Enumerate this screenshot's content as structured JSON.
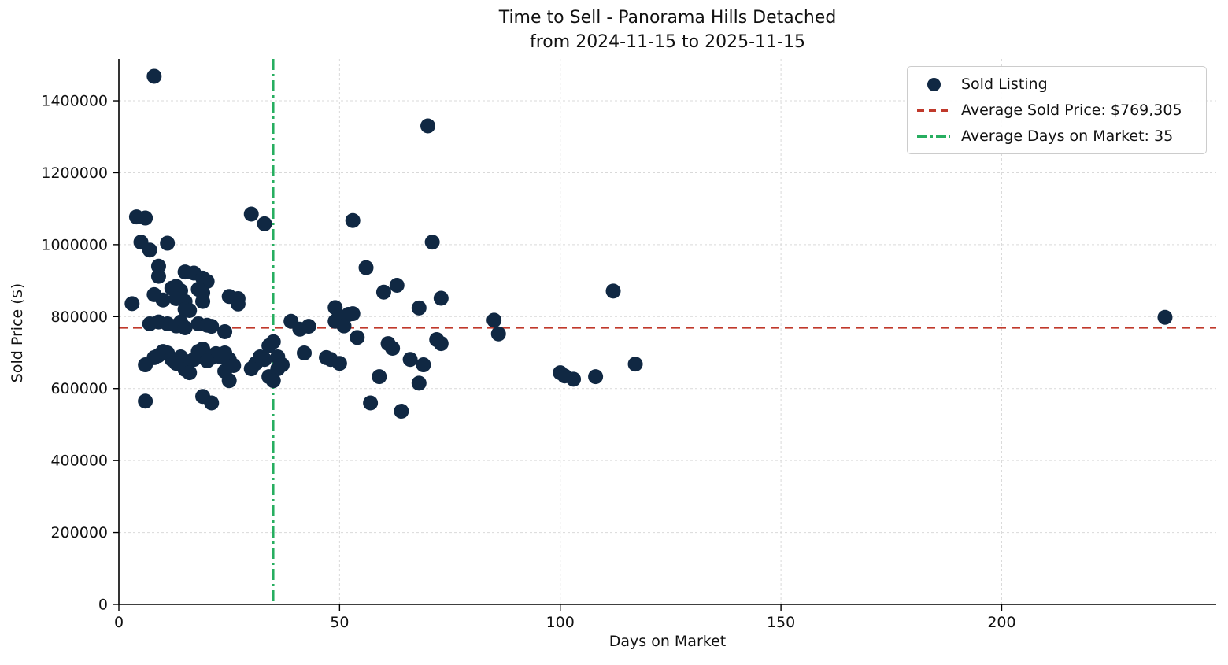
{
  "title": {
    "line1": "Time to Sell - Panorama Hills Detached",
    "line2": "from 2024-11-15 to 2025-11-15"
  },
  "colors": {
    "dot": "#102843",
    "avg_price_line": "#c0392b",
    "avg_dom_line": "#27ae60",
    "grid": "#d9d9d9",
    "axis": "#000000"
  },
  "legend": {
    "items": [
      {
        "marker": "dot-marker",
        "label": "Sold Listing"
      },
      {
        "marker": "dashed-line-marker",
        "label": "Average Sold Price: $769,305"
      },
      {
        "marker": "dashdot-line-marker",
        "label": "Average Days on Market: 35"
      }
    ]
  },
  "chart_data": {
    "type": "scatter",
    "title": "Time to Sell - Panorama Hills Detached from 2024-11-15 to 2025-11-15",
    "xlabel": "Days on Market",
    "ylabel": "Sold Price ($)",
    "xlim": [
      0,
      248.6
    ],
    "ylim": [
      0,
      1516000
    ],
    "x_ticks": [
      0,
      50,
      100,
      150,
      200
    ],
    "y_ticks": [
      0,
      200000,
      400000,
      600000,
      800000,
      1000000,
      1200000,
      1400000
    ],
    "grid": true,
    "legend_position": "upper right",
    "reference_lines": [
      {
        "name": "Average Sold Price: $769,305",
        "orientation": "horizontal",
        "value": 769305,
        "style": "dashed"
      },
      {
        "name": "Average Days on Market: 35",
        "orientation": "vertical",
        "value": 35,
        "style": "dashdot"
      }
    ],
    "series": [
      {
        "name": "Sold Listing",
        "points": [
          [
            8,
            1468000
          ],
          [
            70,
            1330000
          ],
          [
            30,
            1085000
          ],
          [
            4,
            1077000
          ],
          [
            6,
            1074000
          ],
          [
            53,
            1067000
          ],
          [
            33,
            1058000
          ],
          [
            5,
            1007000
          ],
          [
            71,
            1007000
          ],
          [
            11,
            1004000
          ],
          [
            7,
            985000
          ],
          [
            9,
            940000
          ],
          [
            56,
            936000
          ],
          [
            15,
            924000
          ],
          [
            17,
            921000
          ],
          [
            9,
            912000
          ],
          [
            19,
            907000
          ],
          [
            20,
            898000
          ],
          [
            63,
            887000
          ],
          [
            13,
            884000
          ],
          [
            12,
            879000
          ],
          [
            18,
            876000
          ],
          [
            14,
            872000
          ],
          [
            112,
            871000
          ],
          [
            60,
            868000
          ],
          [
            19,
            866000
          ],
          [
            8,
            861000
          ],
          [
            25,
            856000
          ],
          [
            73,
            851000
          ],
          [
            13,
            850000
          ],
          [
            27,
            850000
          ],
          [
            10,
            846000
          ],
          [
            15,
            842000
          ],
          [
            19,
            842000
          ],
          [
            3,
            836000
          ],
          [
            27,
            835000
          ],
          [
            49,
            825000
          ],
          [
            68,
            824000
          ],
          [
            15,
            820000
          ],
          [
            16,
            817000
          ],
          [
            53,
            808000
          ],
          [
            52,
            806000
          ],
          [
            237,
            798000
          ],
          [
            50,
            795000
          ],
          [
            85,
            790000
          ],
          [
            39,
            787000
          ],
          [
            49,
            787000
          ],
          [
            9,
            785000
          ],
          [
            14,
            785000
          ],
          [
            7,
            780000
          ],
          [
            11,
            780000
          ],
          [
            18,
            780000
          ],
          [
            20,
            776000
          ],
          [
            13,
            774000
          ],
          [
            51,
            774000
          ],
          [
            43,
            773000
          ],
          [
            21,
            773000
          ],
          [
            15,
            769000
          ],
          [
            41,
            765000
          ],
          [
            24,
            758000
          ],
          [
            86,
            752000
          ],
          [
            54,
            742000
          ],
          [
            72,
            736000
          ],
          [
            35,
            730000
          ],
          [
            61,
            725000
          ],
          [
            73,
            725000
          ],
          [
            34,
            719000
          ],
          [
            62,
            712000
          ],
          [
            19,
            710000
          ],
          [
            10,
            703000
          ],
          [
            18,
            703000
          ],
          [
            42,
            699000
          ],
          [
            11,
            699000
          ],
          [
            24,
            699000
          ],
          [
            22,
            697000
          ],
          [
            9,
            692000
          ],
          [
            14,
            688000
          ],
          [
            23,
            688000
          ],
          [
            32,
            688000
          ],
          [
            36,
            688000
          ],
          [
            8,
            686000
          ],
          [
            21,
            686000
          ],
          [
            47,
            686000
          ],
          [
            12,
            681000
          ],
          [
            17,
            681000
          ],
          [
            25,
            681000
          ],
          [
            33,
            681000
          ],
          [
            48,
            681000
          ],
          [
            66,
            681000
          ],
          [
            20,
            677000
          ],
          [
            16,
            675000
          ],
          [
            13,
            670000
          ],
          [
            31,
            670000
          ],
          [
            50,
            670000
          ],
          [
            117,
            668000
          ],
          [
            6,
            666000
          ],
          [
            37,
            666000
          ],
          [
            69,
            666000
          ],
          [
            15,
            664000
          ],
          [
            26,
            664000
          ],
          [
            30,
            655000
          ],
          [
            36,
            655000
          ],
          [
            15,
            653000
          ],
          [
            24,
            648000
          ],
          [
            16,
            644000
          ],
          [
            100,
            644000
          ],
          [
            101,
            635000
          ],
          [
            34,
            633000
          ],
          [
            59,
            633000
          ],
          [
            108,
            633000
          ],
          [
            103,
            626000
          ],
          [
            25,
            622000
          ],
          [
            35,
            622000
          ],
          [
            68,
            615000
          ],
          [
            19,
            578000
          ],
          [
            6,
            565000
          ],
          [
            21,
            560000
          ],
          [
            57,
            560000
          ],
          [
            64,
            537000
          ]
        ]
      }
    ]
  }
}
